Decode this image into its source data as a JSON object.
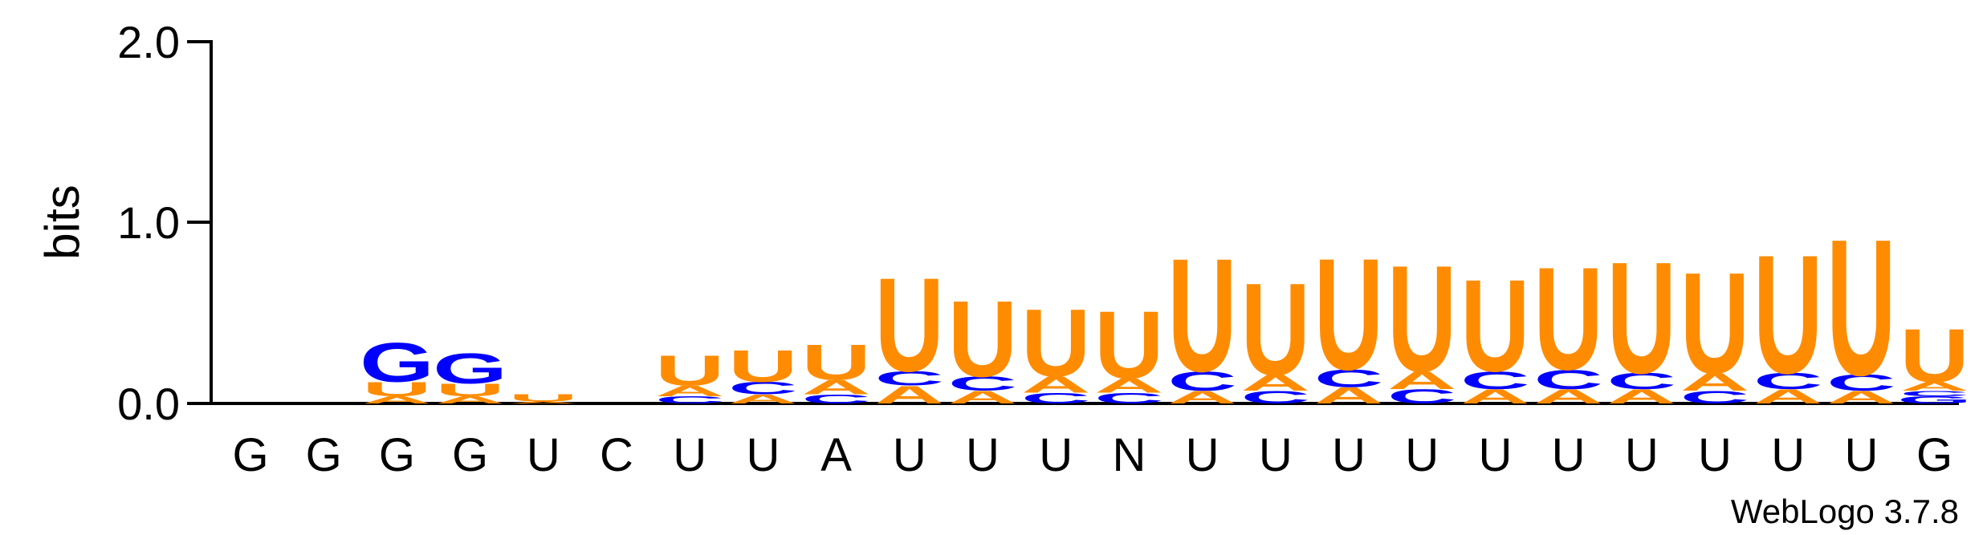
{
  "colors": {
    "A": "#ff8c00",
    "C": "#0000ff",
    "G": "#0000ff",
    "U": "#ff8c00",
    "axis": "#000000"
  },
  "chart_data": {
    "type": "sequence-logo",
    "ylabel": "bits",
    "ylim": [
      0,
      2.0
    ],
    "yticks": [
      "0.0",
      "1.0",
      "2.0"
    ],
    "credit": "WebLogo 3.7.8",
    "positions": [
      {
        "label": "G",
        "stack": []
      },
      {
        "label": "G",
        "stack": []
      },
      {
        "label": "G",
        "stack": [
          {
            "letter": "A",
            "bits": 0.04
          },
          {
            "letter": "U",
            "bits": 0.08
          },
          {
            "letter": "G",
            "bits": 0.22
          }
        ]
      },
      {
        "label": "G",
        "stack": [
          {
            "letter": "A",
            "bits": 0.04
          },
          {
            "letter": "U",
            "bits": 0.07
          },
          {
            "letter": "G",
            "bits": 0.17
          }
        ]
      },
      {
        "label": "U",
        "stack": [
          {
            "letter": "A",
            "bits": 0.01
          },
          {
            "letter": "U",
            "bits": 0.04
          }
        ]
      },
      {
        "label": "C",
        "stack": []
      },
      {
        "label": "U",
        "stack": [
          {
            "letter": "C",
            "bits": 0.04
          },
          {
            "letter": "A",
            "bits": 0.06
          },
          {
            "letter": "U",
            "bits": 0.17
          }
        ]
      },
      {
        "label": "U",
        "stack": [
          {
            "letter": "A",
            "bits": 0.05
          },
          {
            "letter": "C",
            "bits": 0.07
          },
          {
            "letter": "U",
            "bits": 0.18
          }
        ]
      },
      {
        "label": "A",
        "stack": [
          {
            "letter": "C",
            "bits": 0.05
          },
          {
            "letter": "A",
            "bits": 0.08
          },
          {
            "letter": "U",
            "bits": 0.2
          }
        ]
      },
      {
        "label": "U",
        "stack": [
          {
            "letter": "A",
            "bits": 0.1
          },
          {
            "letter": "C",
            "bits": 0.08
          },
          {
            "letter": "U",
            "bits": 0.53
          }
        ]
      },
      {
        "label": "U",
        "stack": [
          {
            "letter": "A",
            "bits": 0.07
          },
          {
            "letter": "C",
            "bits": 0.08
          },
          {
            "letter": "U",
            "bits": 0.43
          }
        ]
      },
      {
        "label": "U",
        "stack": [
          {
            "letter": "C",
            "bits": 0.06
          },
          {
            "letter": "A",
            "bits": 0.09
          },
          {
            "letter": "U",
            "bits": 0.38
          }
        ]
      },
      {
        "label": "N",
        "stack": [
          {
            "letter": "C",
            "bits": 0.06
          },
          {
            "letter": "A",
            "bits": 0.08
          },
          {
            "letter": "U",
            "bits": 0.38
          }
        ]
      },
      {
        "label": "U",
        "stack": [
          {
            "letter": "A",
            "bits": 0.07
          },
          {
            "letter": "C",
            "bits": 0.11
          },
          {
            "letter": "U",
            "bits": 0.64
          }
        ]
      },
      {
        "label": "U",
        "stack": [
          {
            "letter": "C",
            "bits": 0.07
          },
          {
            "letter": "A",
            "bits": 0.09
          },
          {
            "letter": "U",
            "bits": 0.52
          }
        ]
      },
      {
        "label": "U",
        "stack": [
          {
            "letter": "A",
            "bits": 0.09
          },
          {
            "letter": "C",
            "bits": 0.1
          },
          {
            "letter": "U",
            "bits": 0.63
          }
        ]
      },
      {
        "label": "U",
        "stack": [
          {
            "letter": "C",
            "bits": 0.08
          },
          {
            "letter": "A",
            "bits": 0.1
          },
          {
            "letter": "U",
            "bits": 0.6
          }
        ]
      },
      {
        "label": "U",
        "stack": [
          {
            "letter": "A",
            "bits": 0.08
          },
          {
            "letter": "C",
            "bits": 0.1
          },
          {
            "letter": "U",
            "bits": 0.52
          }
        ]
      },
      {
        "label": "U",
        "stack": [
          {
            "letter": "A",
            "bits": 0.08
          },
          {
            "letter": "C",
            "bits": 0.11
          },
          {
            "letter": "U",
            "bits": 0.58
          }
        ]
      },
      {
        "label": "U",
        "stack": [
          {
            "letter": "A",
            "bits": 0.08
          },
          {
            "letter": "C",
            "bits": 0.09
          },
          {
            "letter": "U",
            "bits": 0.63
          }
        ]
      },
      {
        "label": "U",
        "stack": [
          {
            "letter": "C",
            "bits": 0.07
          },
          {
            "letter": "A",
            "bits": 0.1
          },
          {
            "letter": "U",
            "bits": 0.57
          }
        ]
      },
      {
        "label": "U",
        "stack": [
          {
            "letter": "A",
            "bits": 0.08
          },
          {
            "letter": "C",
            "bits": 0.09
          },
          {
            "letter": "U",
            "bits": 0.67
          }
        ]
      },
      {
        "label": "U",
        "stack": [
          {
            "letter": "A",
            "bits": 0.07
          },
          {
            "letter": "C",
            "bits": 0.09
          },
          {
            "letter": "U",
            "bits": 0.77
          }
        ]
      },
      {
        "label": "G",
        "stack": [
          {
            "letter": "G",
            "bits": 0.04
          },
          {
            "letter": "C",
            "bits": 0.03
          },
          {
            "letter": "A",
            "bits": 0.05
          },
          {
            "letter": "U",
            "bits": 0.3
          }
        ]
      }
    ]
  }
}
